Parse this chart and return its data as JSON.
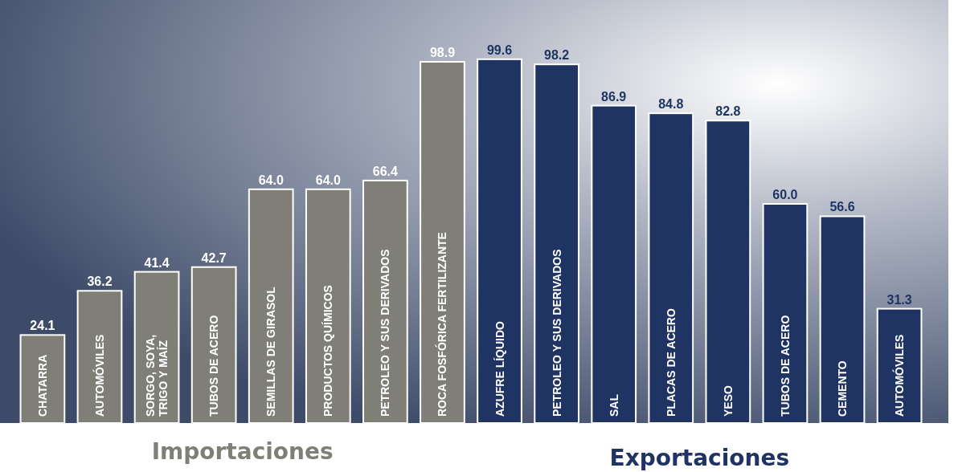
{
  "chart_data": {
    "type": "bar",
    "categories": [
      "CHATARRA",
      "AUTOMÓVILES",
      "SORGO, SOYA, TRIGO Y MAÍZ",
      "TUBOS DE ACERO",
      "SEMILLAS DE GIRASOL",
      "PRODUCTOS QUÍMICOS",
      "PETROLEO Y SUS DERIVADOS",
      "ROCA FOSFÓRICA FERTILIZANTE",
      "AZUFRE LÍQUIDO",
      "PETROLEO Y SUS DERIVADOS",
      "SAL",
      "PLACAS DE ACERO",
      "YESO",
      "TUBOS DE ACERO",
      "CEMENTO",
      "AUTOMÓVILES"
    ],
    "values": [
      24.1,
      36.2,
      41.4,
      42.7,
      64.0,
      64.0,
      66.4,
      98.9,
      99.6,
      98.2,
      86.9,
      84.8,
      82.8,
      60.0,
      56.6,
      31.3
    ],
    "value_labels": [
      "24.1",
      "36.2",
      "41.4",
      "42.7",
      "64.0",
      "64.0",
      "66.4",
      "98.9",
      "99.6",
      "98.2",
      "86.9",
      "84.8",
      "82.8",
      "60.0",
      "56.6",
      "31.3"
    ],
    "colors": [
      "#7f7f78",
      "#7f7f78",
      "#7f7f78",
      "#7f7f78",
      "#7f7f78",
      "#7f7f78",
      "#7f7f78",
      "#7f7f78",
      "#1f3462",
      "#1f3462",
      "#1f3462",
      "#1f3462",
      "#1f3462",
      "#1f3462",
      "#1f3462",
      "#1f3462"
    ],
    "annotations": [
      "Importaciones",
      "Exportaciones"
    ]
  }
}
